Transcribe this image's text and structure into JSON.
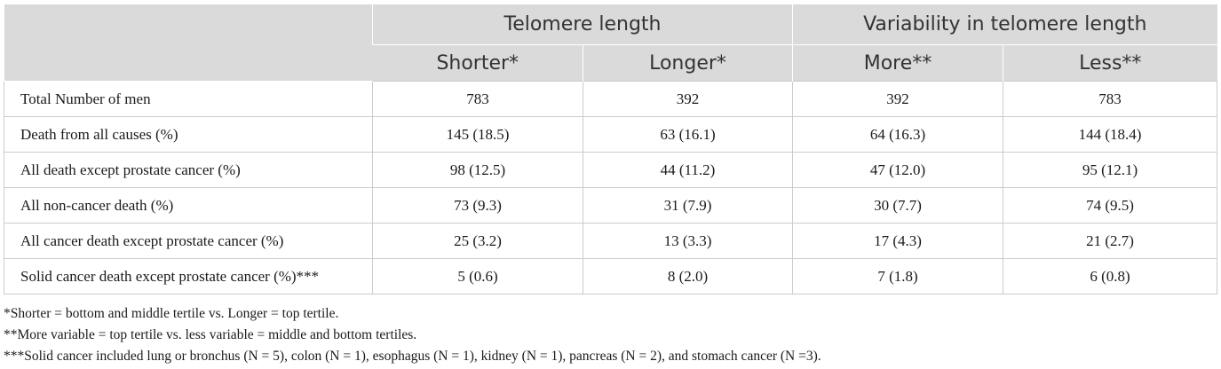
{
  "table": {
    "group_headers": [
      "Telomere length",
      "Variability in telomere length"
    ],
    "sub_headers": [
      "Shorter*",
      "Longer*",
      "More**",
      "Less**"
    ],
    "rows": [
      {
        "label": "Total Number of men",
        "values": [
          "783",
          "392",
          "392",
          "783"
        ]
      },
      {
        "label": "Death from all causes (%)",
        "values": [
          "145 (18.5)",
          "63 (16.1)",
          "64 (16.3)",
          "144 (18.4)"
        ]
      },
      {
        "label": "All death except prostate cancer (%)",
        "values": [
          "98 (12.5)",
          "44 (11.2)",
          "47 (12.0)",
          "95 (12.1)"
        ]
      },
      {
        "label": "All non-cancer death (%)",
        "values": [
          "73 (9.3)",
          "31 (7.9)",
          "30 (7.7)",
          "74 (9.5)"
        ]
      },
      {
        "label": "All cancer death except prostate cancer (%)",
        "values": [
          "25 (3.2)",
          "13 (3.3)",
          "17 (4.3)",
          "21 (2.7)"
        ]
      },
      {
        "label": "Solid cancer death except prostate cancer (%)***",
        "values": [
          "5 (0.6)",
          "8 (2.0)",
          "7 (1.8)",
          "6 (0.8)"
        ]
      }
    ]
  },
  "footnotes": [
    "*Shorter = bottom and middle tertile vs. Longer = top tertile.",
    "**More variable = top tertile vs. less variable = middle and bottom tertiles.",
    "***Solid cancer included lung or bronchus (N = 5), colon (N = 1), esophagus (N = 1), kidney (N = 1), pancreas (N = 2), and stomach cancer (N =3)."
  ]
}
